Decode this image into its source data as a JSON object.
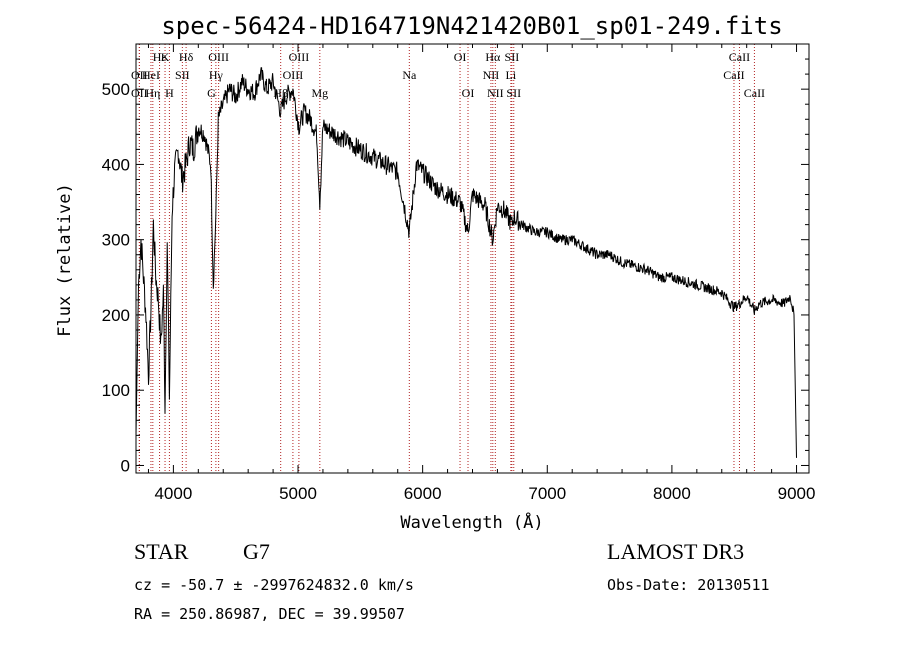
{
  "chart_data": {
    "type": "line",
    "title": "spec-56424-HD164719N421420B01_sp01-249.fits",
    "xlabel": "Wavelength (Å)",
    "ylabel": "Flux (relative)",
    "xlim": [
      3700,
      9100
    ],
    "ylim": [
      -10,
      560
    ],
    "x_ticks": [
      4000,
      5000,
      6000,
      7000,
      8000,
      9000
    ],
    "y_ticks": [
      0,
      100,
      200,
      300,
      400,
      500
    ],
    "grid": false,
    "series": [
      {
        "x": [
          3700,
          3720,
          3740,
          3760,
          3780,
          3800,
          3820,
          3840,
          3860,
          3880,
          3900,
          3920,
          3933,
          3950,
          3968,
          3990,
          4010,
          4040,
          4070,
          4102,
          4130,
          4160,
          4200,
          4250,
          4300,
          4320,
          4340,
          4360,
          4400,
          4450,
          4500,
          4550,
          4600,
          4650,
          4700,
          4750,
          4800,
          4861,
          4900,
          4959,
          5007,
          5050,
          5100,
          5150,
          5175,
          5200,
          5300,
          5400,
          5500,
          5600,
          5700,
          5800,
          5893,
          5950,
          6000,
          6100,
          6200,
          6300,
          6364,
          6400,
          6500,
          6563,
          6600,
          6650,
          6716,
          6731,
          6800,
          6900,
          7000,
          7100,
          7200,
          7300,
          7400,
          7500,
          7600,
          7700,
          7800,
          7900,
          8000,
          8100,
          8200,
          8300,
          8400,
          8498,
          8542,
          8600,
          8662,
          8700,
          8800,
          8900,
          8950,
          8980,
          9000
        ],
        "y": [
          40,
          240,
          300,
          250,
          200,
          120,
          210,
          320,
          250,
          220,
          160,
          230,
          80,
          300,
          90,
          340,
          390,
          420,
          380,
          400,
          430,
          420,
          450,
          440,
          400,
          240,
          330,
          460,
          480,
          500,
          490,
          510,
          500,
          495,
          520,
          500,
          510,
          470,
          490,
          500,
          450,
          470,
          460,
          440,
          350,
          450,
          440,
          430,
          420,
          410,
          400,
          390,
          310,
          400,
          390,
          370,
          360,
          350,
          310,
          360,
          345,
          300,
          345,
          340,
          320,
          330,
          320,
          310,
          310,
          300,
          300,
          290,
          280,
          280,
          270,
          265,
          260,
          250,
          250,
          245,
          240,
          235,
          230,
          210,
          215,
          225,
          205,
          215,
          220,
          215,
          225,
          200,
          10
        ]
      }
    ],
    "spectral_lines": [
      {
        "label": "Hε",
        "wavelength": 3889,
        "row": 0
      },
      {
        "label": "K",
        "wavelength": 3933,
        "row": 0
      },
      {
        "label": "Hδ",
        "wavelength": 4102,
        "row": 0
      },
      {
        "label": "OII",
        "wavelength": 3727,
        "row": 1
      },
      {
        "label": "HeI",
        "wavelength": 3820,
        "row": 1
      },
      {
        "label": "SII",
        "wavelength": 4072,
        "row": 1
      },
      {
        "label": "OII",
        "wavelength": 3727,
        "row": 2
      },
      {
        "label": "Hη",
        "wavelength": 3835,
        "row": 2
      },
      {
        "label": "H",
        "wavelength": 3968,
        "row": 2
      },
      {
        "label": "OIII",
        "wavelength": 4363,
        "row": 0
      },
      {
        "label": "Hγ",
        "wavelength": 4341,
        "row": 1
      },
      {
        "label": "G",
        "wavelength": 4305,
        "row": 2
      },
      {
        "label": "OIII",
        "wavelength": 5007,
        "row": 0
      },
      {
        "label": "OIII",
        "wavelength": 4959,
        "row": 1
      },
      {
        "label": "Hβ",
        "wavelength": 4861,
        "row": 2
      },
      {
        "label": "Mg",
        "wavelength": 5175,
        "row": 2
      },
      {
        "label": "Na",
        "wavelength": 5893,
        "row": 1
      },
      {
        "label": "OI",
        "wavelength": 6300,
        "row": 0
      },
      {
        "label": "OI",
        "wavelength": 6364,
        "row": 2
      },
      {
        "label": "Hα",
        "wavelength": 6563,
        "row": 0
      },
      {
        "label": "SII",
        "wavelength": 6716,
        "row": 0
      },
      {
        "label": "NII",
        "wavelength": 6548,
        "row": 1
      },
      {
        "label": "Li",
        "wavelength": 6708,
        "row": 1
      },
      {
        "label": "NII",
        "wavelength": 6583,
        "row": 2
      },
      {
        "label": "SII",
        "wavelength": 6731,
        "row": 2
      },
      {
        "label": "CaII",
        "wavelength": 8542,
        "row": 0
      },
      {
        "label": "CaII",
        "wavelength": 8498,
        "row": 1
      },
      {
        "label": "CaII",
        "wavelength": 8662,
        "row": 2
      }
    ],
    "colors": {
      "spectrum": "#000000",
      "line_markers": "#b22222"
    }
  },
  "info": {
    "object_class": "STAR",
    "subclass": "G7",
    "survey": "LAMOST DR3",
    "redshift_line": "cz = -50.7 ± -2997624832.0 km/s",
    "obs_date": "Obs-Date: 20130511",
    "coords": "RA = 250.86987, DEC =  39.99507"
  }
}
